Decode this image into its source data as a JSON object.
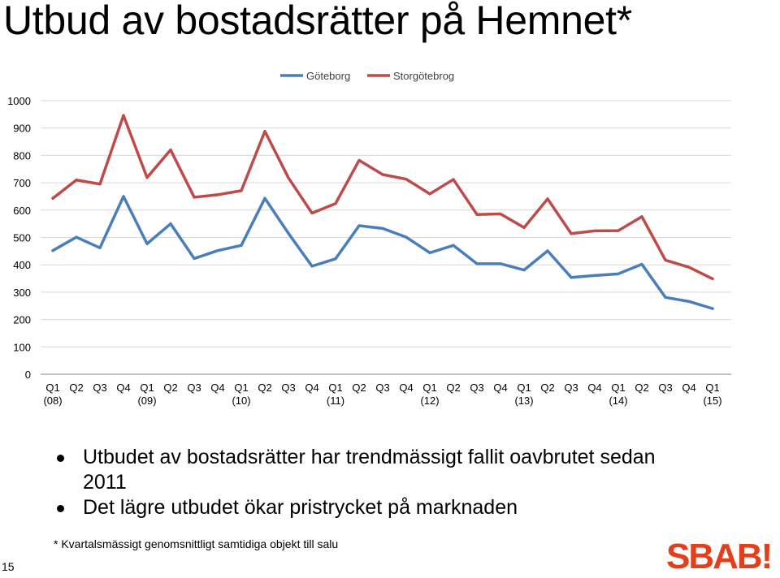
{
  "slide": {
    "title": "Utbud av bostadsrätter på Hemnet*",
    "bullets": [
      "Utbudet av bostadsrätter har trendmässigt fallit oavbrutet sedan 2011",
      "Det lägre utbudet ökar pristrycket på marknaden"
    ],
    "footnote": "* Kvartalsmässigt genomsnittligt samtidiga objekt till salu",
    "page_number": "15",
    "logo_text": "SBAB!"
  },
  "colors": {
    "goteborg": "#4a7ebb",
    "storgoteborg": "#be4b48",
    "gridline": "#d9d9d9",
    "axis": "#868686",
    "logo": "#e2401c"
  },
  "chart_data": {
    "type": "line",
    "title": "",
    "xlabel": "",
    "ylabel": "",
    "ylim": [
      0,
      1000
    ],
    "yticks": [
      0,
      100,
      200,
      300,
      400,
      500,
      600,
      700,
      800,
      900,
      1000
    ],
    "grid": true,
    "legend_position": "top-center",
    "categories": [
      "Q1 (08)",
      "Q2",
      "Q3",
      "Q4",
      "Q1 (09)",
      "Q2",
      "Q3",
      "Q4",
      "Q1 (10)",
      "Q2",
      "Q3",
      "Q4",
      "Q1 (11)",
      "Q2",
      "Q3",
      "Q4",
      "Q1 (12)",
      "Q2",
      "Q3",
      "Q4",
      "Q1 (13)",
      "Q2",
      "Q3",
      "Q4",
      "Q1 (14)",
      "Q2",
      "Q3",
      "Q4",
      "Q1 (15)"
    ],
    "category_labels": [
      [
        "Q1",
        "(08)"
      ],
      [
        "Q2",
        ""
      ],
      [
        "Q3",
        ""
      ],
      [
        "Q4",
        ""
      ],
      [
        "Q1",
        "(09)"
      ],
      [
        "Q2",
        ""
      ],
      [
        "Q3",
        ""
      ],
      [
        "Q4",
        ""
      ],
      [
        "Q1",
        "(10)"
      ],
      [
        "Q2",
        ""
      ],
      [
        "Q3",
        ""
      ],
      [
        "Q4",
        ""
      ],
      [
        "Q1",
        "(11)"
      ],
      [
        "Q2",
        ""
      ],
      [
        "Q3",
        ""
      ],
      [
        "Q4",
        ""
      ],
      [
        "Q1",
        "(12)"
      ],
      [
        "Q2",
        ""
      ],
      [
        "Q3",
        ""
      ],
      [
        "Q4",
        ""
      ],
      [
        "Q1",
        "(13)"
      ],
      [
        "Q2",
        ""
      ],
      [
        "Q3",
        ""
      ],
      [
        "Q4",
        ""
      ],
      [
        "Q1",
        "(14)"
      ],
      [
        "Q2",
        ""
      ],
      [
        "Q3",
        ""
      ],
      [
        "Q4",
        ""
      ],
      [
        "Q1",
        "(15)"
      ]
    ],
    "series": [
      {
        "name": "Göteborg",
        "color": "#4a7ebb",
        "values": [
          452,
          501,
          462,
          650,
          477,
          550,
          423,
          452,
          471,
          643,
          515,
          395,
          422,
          543,
          533,
          501,
          444,
          471,
          404,
          404,
          381,
          451,
          354,
          361,
          367,
          402,
          281,
          266,
          240
        ]
      },
      {
        "name": "Storgötebrog",
        "color": "#be4b48",
        "values": [
          643,
          710,
          695,
          946,
          719,
          820,
          647,
          656,
          671,
          888,
          718,
          589,
          624,
          782,
          730,
          713,
          659,
          712,
          584,
          586,
          536,
          641,
          514,
          524,
          525,
          576,
          417,
          391,
          349
        ]
      }
    ]
  }
}
